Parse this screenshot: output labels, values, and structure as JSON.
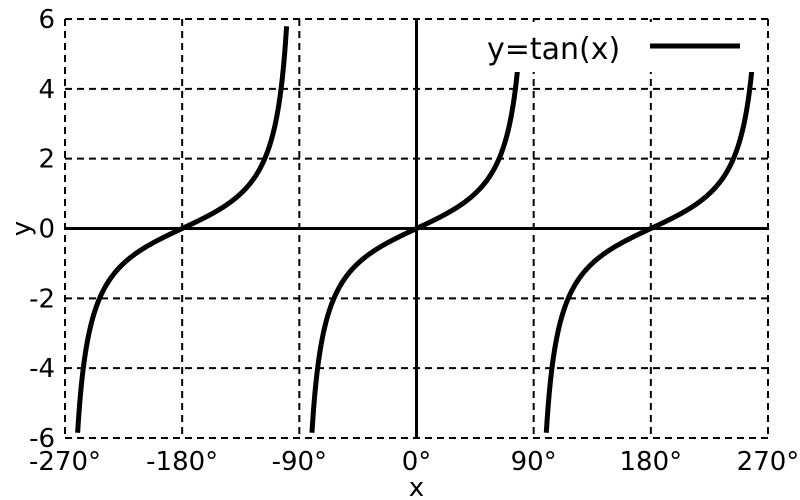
{
  "chart_data": {
    "type": "line",
    "xlabel": "x",
    "ylabel": "y",
    "xlim": [
      -270,
      270
    ],
    "ylim": [
      -6,
      6
    ],
    "x_ticks": [
      -270,
      -180,
      -90,
      0,
      90,
      180,
      270
    ],
    "x_tick_labels": [
      "-270°",
      "-180°",
      "-90°",
      "0°",
      "90°",
      "180°",
      "270°"
    ],
    "y_ticks": [
      -6,
      -4,
      -2,
      0,
      2,
      4,
      6
    ],
    "y_tick_labels": [
      "-6",
      "-4",
      "-2",
      "0",
      "2",
      "4",
      "6"
    ],
    "grid": true,
    "grid_style": "dashed",
    "legend_position": "top-right",
    "series": [
      {
        "name": "y=tan(x)",
        "function": "tan",
        "x_unit": "degrees",
        "color": "#000000",
        "asymptotes": [
          -270,
          -90,
          90,
          270
        ],
        "x": [
          -260,
          -240,
          -225,
          -210,
          -180,
          -150,
          -135,
          -120,
          -100,
          -80,
          -60,
          -45,
          -30,
          0,
          30,
          45,
          60,
          80,
          100,
          120,
          135,
          150,
          180,
          210,
          225,
          240,
          260
        ],
        "y": [
          -5.67,
          -1.73,
          -1,
          -0.58,
          0,
          0.58,
          1,
          1.73,
          5.67,
          -5.67,
          -1.73,
          -1,
          -0.58,
          0,
          0.58,
          1,
          1.73,
          5.67,
          -5.67,
          -1.73,
          -1,
          -0.58,
          0,
          0.58,
          1,
          1.73,
          5.67
        ]
      }
    ]
  }
}
